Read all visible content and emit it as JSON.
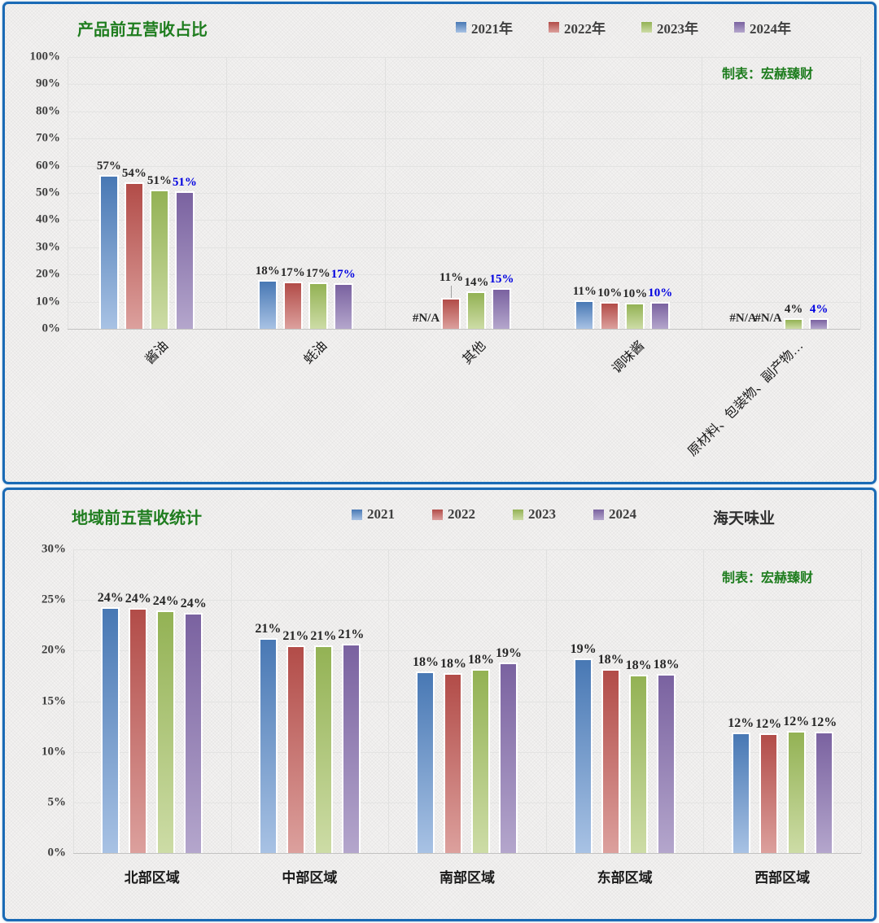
{
  "page": {
    "panel_border_color": "#1a6ab5",
    "background": "#f3f2f1"
  },
  "chart_data": [
    {
      "type": "bar",
      "title": "产品前五营收占比",
      "title_color": "#1f7d1f",
      "maker_note": "制表：宏赫臻财",
      "maker_note_color": "#1f7d1f",
      "legend_position": "top",
      "grid": true,
      "x_label_rotation": 45,
      "ylim": [
        0,
        100
      ],
      "y_ticks": [
        "0%",
        "10%",
        "20%",
        "30%",
        "40%",
        "50%",
        "60%",
        "70%",
        "80%",
        "90%",
        "100%"
      ],
      "categories": [
        "酱油",
        "蚝油",
        "其他",
        "调味酱",
        "原材料、包装物、副产物…"
      ],
      "series": [
        {
          "name": "2021年",
          "color": "#4878b4",
          "color_light": "#a8c2e4",
          "label_color": "#262626",
          "values": [
            56.5,
            17.9,
            null,
            10.5,
            null
          ],
          "labels": [
            "57%",
            "18%",
            "#N/A",
            "11%",
            "#N/A"
          ]
        },
        {
          "name": "2022年",
          "color": "#b24c48",
          "color_light": "#dca09d",
          "label_color": "#262626",
          "values": [
            54.0,
            17.3,
            11.3,
            10.0,
            null
          ],
          "labels": [
            "54%",
            "17%",
            "11%",
            "10%",
            "#N/A"
          ]
        },
        {
          "name": "2023年",
          "color": "#93b254",
          "color_light": "#cddca6",
          "label_color": "#262626",
          "values": [
            51.2,
            17.1,
            13.9,
            9.7,
            4.0
          ],
          "labels": [
            "51%",
            "17%",
            "14%",
            "10%",
            "4%"
          ]
        },
        {
          "name": "2024年",
          "color": "#7a62a0",
          "color_light": "#b4a6cc",
          "label_color": "#0000e0",
          "values": [
            50.7,
            16.9,
            15.0,
            9.8,
            3.9
          ],
          "labels": [
            "51%",
            "17%",
            "15%",
            "10%",
            "4%"
          ]
        }
      ],
      "leader_lines": [
        {
          "series": 1,
          "category": 2
        }
      ]
    },
    {
      "type": "bar",
      "title": "地域前五营收统计",
      "title_color": "#1f7d1f",
      "company": "海天味业",
      "maker_note": "制表：宏赫臻财",
      "maker_note_color": "#1f7d1f",
      "legend_position": "top",
      "grid": true,
      "x_label_rotation": 0,
      "ylim": [
        0,
        30
      ],
      "y_ticks": [
        "0%",
        "5%",
        "10%",
        "15%",
        "20%",
        "25%",
        "30%"
      ],
      "categories": [
        "北部区域",
        "中部区域",
        "南部区域",
        "东部区域",
        "西部区域"
      ],
      "series": [
        {
          "name": "2021",
          "color": "#4878b4",
          "color_light": "#a8c2e4",
          "label_color": "#262626",
          "values": [
            24.3,
            21.2,
            17.9,
            19.2,
            11.9
          ],
          "labels": [
            "24%",
            "21%",
            "18%",
            "19%",
            "12%"
          ]
        },
        {
          "name": "2022",
          "color": "#b24c48",
          "color_light": "#dca09d",
          "label_color": "#262626",
          "values": [
            24.2,
            20.5,
            17.8,
            18.2,
            11.8
          ],
          "labels": [
            "24%",
            "21%",
            "18%",
            "18%",
            "12%"
          ]
        },
        {
          "name": "2023",
          "color": "#93b254",
          "color_light": "#cddca6",
          "label_color": "#262626",
          "values": [
            24.0,
            20.5,
            18.2,
            17.6,
            12.1
          ],
          "labels": [
            "24%",
            "21%",
            "18%",
            "18%",
            "12%"
          ]
        },
        {
          "name": "2024",
          "color": "#7a62a0",
          "color_light": "#b4a6cc",
          "label_color": "#262626",
          "values": [
            23.7,
            20.7,
            18.8,
            17.7,
            12.0
          ],
          "labels": [
            "24%",
            "21%",
            "19%",
            "18%",
            "12%"
          ]
        }
      ],
      "leader_lines": []
    }
  ]
}
